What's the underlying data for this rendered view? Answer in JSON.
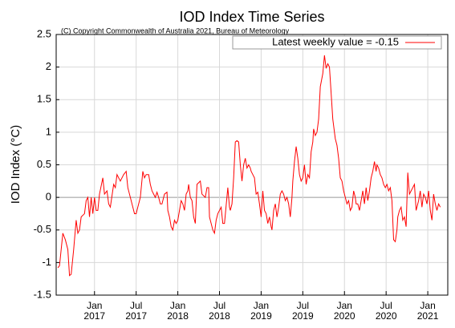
{
  "chart_data": {
    "type": "line",
    "title": "IOD Index Time Series",
    "subtitle": "(C) Copyright Commonwealth of Australia 2021, Bureau of Meteorology",
    "ylabel": "IOD Index (°C)",
    "grid": true,
    "legend": "upper right",
    "xlim": [
      2016.54,
      2021.24
    ],
    "ylim": [
      -1.5,
      2.5
    ],
    "yticks": [
      -1.5,
      -1,
      -0.5,
      0,
      0.5,
      1,
      1.5,
      2,
      2.5
    ],
    "xticks": [
      {
        "value": 2017.0,
        "label": [
          "Jan",
          "2017"
        ]
      },
      {
        "value": 2017.5,
        "label": [
          "Jul",
          "2017"
        ]
      },
      {
        "value": 2018.0,
        "label": [
          "Jan",
          "2018"
        ]
      },
      {
        "value": 2018.5,
        "label": [
          "Jul",
          "2018"
        ]
      },
      {
        "value": 2019.0,
        "label": [
          "Jan",
          "2019"
        ]
      },
      {
        "value": 2019.5,
        "label": [
          "Jul",
          "2019"
        ]
      },
      {
        "value": 2020.0,
        "label": [
          "Jan",
          "2020"
        ]
      },
      {
        "value": 2020.5,
        "label": [
          "Jul",
          "2020"
        ]
      },
      {
        "value": 2021.0,
        "label": [
          "Jan",
          "2021"
        ]
      }
    ],
    "x": [
      2016.56,
      2016.58,
      2016.62,
      2016.65,
      2016.68,
      2016.7,
      2016.72,
      2016.75,
      2016.78,
      2016.8,
      2016.82,
      2016.84,
      2016.88,
      2016.9,
      2016.92,
      2016.94,
      2016.96,
      2016.98,
      2017.0,
      2017.02,
      2017.04,
      2017.06,
      2017.1,
      2017.12,
      2017.15,
      2017.17,
      2017.19,
      2017.23,
      2017.25,
      2017.27,
      2017.31,
      2017.35,
      2017.38,
      2017.4,
      2017.43,
      2017.46,
      2017.48,
      2017.5,
      2017.52,
      2017.55,
      2017.58,
      2017.6,
      2017.62,
      2017.65,
      2017.67,
      2017.69,
      2017.73,
      2017.75,
      2017.77,
      2017.79,
      2017.81,
      2017.84,
      2017.87,
      2017.88,
      2017.9,
      2017.92,
      2017.94,
      2017.96,
      2017.98,
      2018.0,
      2018.04,
      2018.06,
      2018.08,
      2018.1,
      2018.12,
      2018.13,
      2018.15,
      2018.17,
      2018.19,
      2018.21,
      2018.23,
      2018.27,
      2018.29,
      2018.33,
      2018.35,
      2018.37,
      2018.38,
      2018.42,
      2018.44,
      2018.46,
      2018.48,
      2018.52,
      2018.54,
      2018.56,
      2018.6,
      2018.62,
      2018.63,
      2018.65,
      2018.67,
      2018.69,
      2018.71,
      2018.73,
      2018.75,
      2018.77,
      2018.79,
      2018.81,
      2018.83,
      2018.85,
      2018.87,
      2018.88,
      2018.9,
      2018.92,
      2018.94,
      2018.96,
      2018.98,
      2019.0,
      2019.02,
      2019.04,
      2019.06,
      2019.08,
      2019.1,
      2019.12,
      2019.13,
      2019.15,
      2019.17,
      2019.19,
      2019.21,
      2019.23,
      2019.25,
      2019.27,
      2019.29,
      2019.31,
      2019.33,
      2019.35,
      2019.37,
      2019.38,
      2019.4,
      2019.42,
      2019.44,
      2019.46,
      2019.48,
      2019.5,
      2019.52,
      2019.54,
      2019.56,
      2019.58,
      2019.6,
      2019.62,
      2019.63,
      2019.65,
      2019.67,
      2019.69,
      2019.71,
      2019.74,
      2019.76,
      2019.78,
      2019.8,
      2019.82,
      2019.84,
      2019.86,
      2019.88,
      2019.89,
      2019.91,
      2019.93,
      2019.95,
      2019.97,
      2019.99,
      2020.01,
      2020.03,
      2020.05,
      2020.07,
      2020.09,
      2020.11,
      2020.13,
      2020.14,
      2020.16,
      2020.18,
      2020.2,
      2020.22,
      2020.24,
      2020.26,
      2020.28,
      2020.3,
      2020.32,
      2020.34,
      2020.36,
      2020.38,
      2020.39,
      2020.41,
      2020.43,
      2020.45,
      2020.47,
      2020.49,
      2020.51,
      2020.53,
      2020.55,
      2020.57,
      2020.59,
      2020.61,
      2020.63,
      2020.64,
      2020.66,
      2020.68,
      2020.7,
      2020.72,
      2020.74,
      2020.76,
      2020.78,
      2020.8,
      2020.82,
      2020.84,
      2020.86,
      2020.88,
      2020.89,
      2020.91,
      2020.93,
      2020.95,
      2020.97,
      2020.99,
      2021.01,
      2021.03,
      2021.05,
      2021.07,
      2021.09,
      2021.11,
      2021.13,
      2021.15
    ],
    "series": [
      {
        "name": "Latest weekly value = -0.15",
        "color": "#ff0000",
        "values": [
          -1.08,
          -1.05,
          -0.55,
          -0.65,
          -0.8,
          -1.2,
          -1.18,
          -0.8,
          -0.35,
          -0.55,
          -0.5,
          -0.3,
          -0.25,
          -0.05,
          0,
          -0.3,
          0,
          -0.25,
          0,
          -0.2,
          -0.2,
          0.05,
          0.3,
          0.05,
          0.1,
          -0.1,
          -0.15,
          0.2,
          0.15,
          0.35,
          0.25,
          0.35,
          0.4,
          0.15,
          0,
          -0.15,
          -0.25,
          -0.25,
          -0.15,
          0,
          0.4,
          0.3,
          0.35,
          0.35,
          0.2,
          0.1,
          0,
          0.08,
          0,
          -0.1,
          -0.1,
          0.05,
          0.08,
          -0.2,
          -0.3,
          -0.45,
          -0.5,
          -0.35,
          -0.4,
          -0.35,
          -0.05,
          -0.1,
          -0.2,
          0.05,
          0.1,
          0.2,
          0,
          -0.05,
          -0.3,
          -0.4,
          0.2,
          0.25,
          0.05,
          0,
          0.15,
          0.15,
          -0.3,
          -0.5,
          -0.55,
          -0.35,
          -0.25,
          -0.15,
          -0.4,
          -0.4,
          0.15,
          -0.15,
          -0.2,
          -0.1,
          0.3,
          0.85,
          0.87,
          0.85,
          0.5,
          0.25,
          0.5,
          0.6,
          0.45,
          0.5,
          0.45,
          0.4,
          0.35,
          0.3,
          0.05,
          0.08,
          -0.1,
          -0.3,
          0.1,
          -0.2,
          -0.25,
          -0.4,
          -0.3,
          -0.45,
          -0.5,
          -0.2,
          -0.1,
          -0.3,
          -0.15,
          0.05,
          0.1,
          0.05,
          -0.05,
          0,
          -0.1,
          -0.3,
          0,
          0.25,
          0.55,
          0.78,
          0.6,
          0.35,
          0.25,
          0.3,
          0.5,
          0.2,
          0.35,
          0.3,
          0.7,
          0.85,
          1.05,
          0.95,
          1.0,
          1.2,
          1.7,
          1.9,
          2.18,
          1.98,
          2.05,
          2.0,
          1.6,
          1.2,
          1.0,
          0.9,
          0.8,
          0.6,
          0.3,
          0.25,
          0.1,
          0,
          -0.1,
          -0.05,
          -0.2,
          -0.15,
          0.1,
          0,
          -0.1,
          -0.1,
          -0.2,
          -0.05,
          0.1,
          -0.1,
          0.15,
          -0.05,
          0.1,
          0.3,
          0.4,
          0.55,
          0.4,
          0.5,
          0.45,
          0.35,
          0.3,
          0.2,
          0.15,
          0.2,
          0.1,
          0.15,
          -0.05,
          -0.65,
          -0.68,
          -0.5,
          -0.3,
          -0.2,
          -0.15,
          -0.35,
          -0.3,
          -0.45,
          0.38,
          0.05,
          0.1,
          0.15,
          0.2,
          -0.2,
          -0.1,
          -0.05,
          0.1,
          -0.15,
          0.05,
          0,
          -0.1,
          0.1,
          -0.2,
          -0.35,
          0.05,
          -0.1,
          -0.2,
          -0.1,
          -0.15
        ]
      }
    ]
  }
}
